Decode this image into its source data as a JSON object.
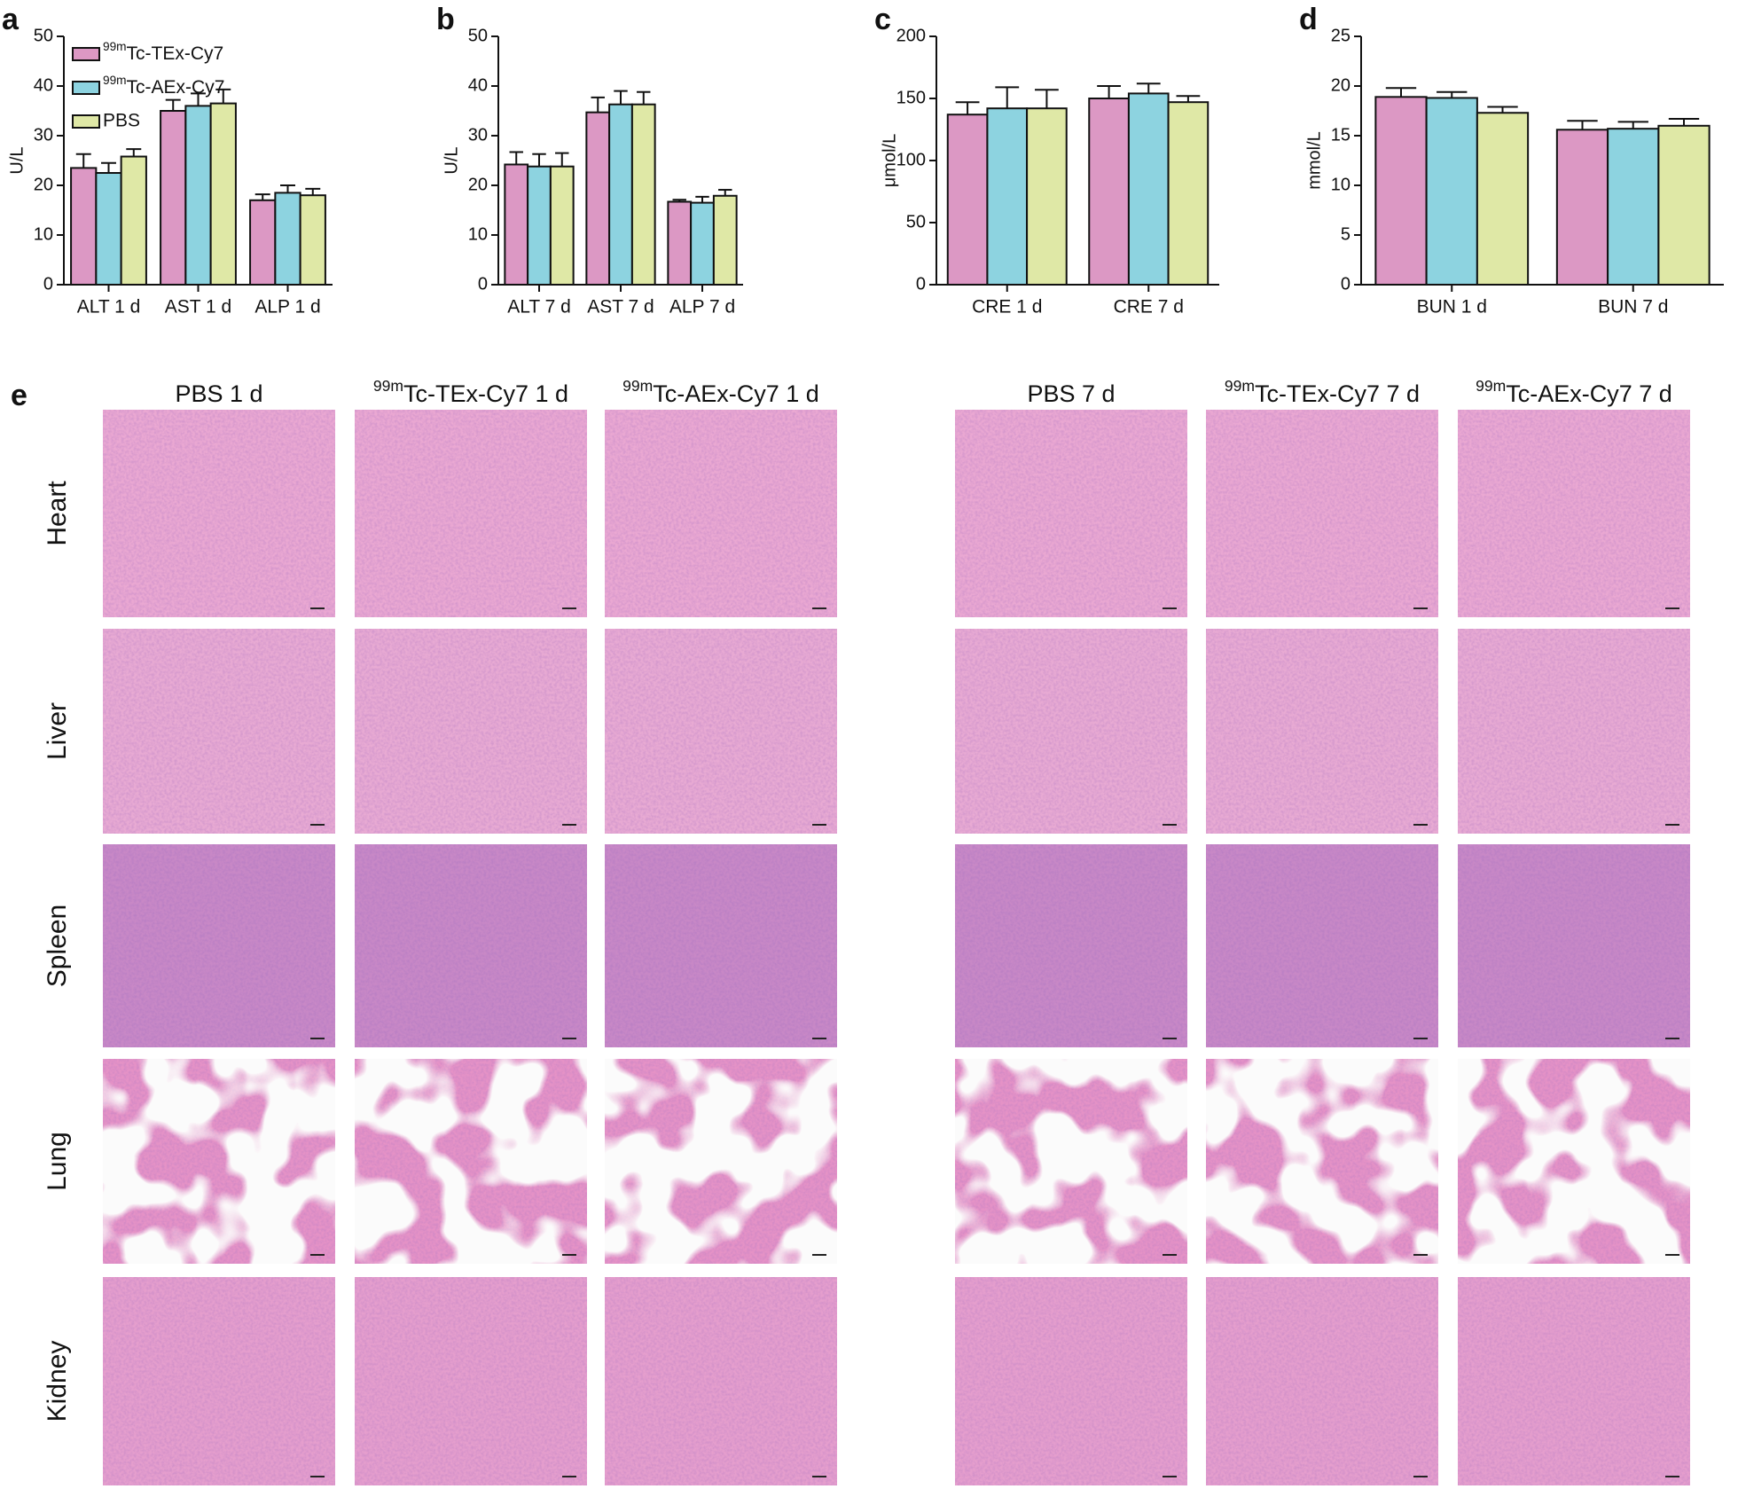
{
  "chart_data": [
    {
      "type": "bar",
      "panel_label": "a",
      "ylabel": "U/L",
      "categories": [
        "ALT 1 d",
        "AST 1 d",
        "ALP 1 d"
      ],
      "ylim": [
        0,
        50
      ],
      "yticks": [
        0,
        10,
        20,
        30,
        40,
        50
      ],
      "legend": "upper left",
      "series": [
        {
          "name": "99mTc-TEx-Cy7",
          "color": "#dc98c4",
          "values": [
            23.5,
            35,
            17
          ],
          "errors": [
            2.8,
            2.2,
            1.2
          ]
        },
        {
          "name": "99mTc-AEx-Cy7",
          "color": "#8dd3e0",
          "values": [
            22.5,
            36,
            18.5
          ],
          "errors": [
            2,
            2.5,
            1.5
          ]
        },
        {
          "name": "PBS",
          "color": "#dfe8a6",
          "values": [
            25.8,
            36.5,
            18
          ],
          "errors": [
            1.5,
            2.8,
            1.3
          ]
        }
      ]
    },
    {
      "type": "bar",
      "panel_label": "b",
      "ylabel": "U/L",
      "categories": [
        "ALT 7 d",
        "AST 7 d",
        "ALP  7 d"
      ],
      "ylim": [
        0,
        50
      ],
      "yticks": [
        0,
        10,
        20,
        30,
        40,
        50
      ],
      "series": [
        {
          "color": "#dc98c4",
          "values": [
            24.2,
            34.7,
            16.7
          ],
          "errors": [
            2.5,
            3,
            0.4
          ]
        },
        {
          "color": "#8dd3e0",
          "values": [
            23.8,
            36.3,
            16.5
          ],
          "errors": [
            2.5,
            2.7,
            1.2
          ]
        },
        {
          "color": "#dfe8a6",
          "values": [
            23.8,
            36.3,
            17.9
          ],
          "errors": [
            2.7,
            2.5,
            1.2
          ]
        }
      ]
    },
    {
      "type": "bar",
      "panel_label": "c",
      "ylabel": "μmol/L",
      "categories": [
        "CRE 1 d",
        "CRE 7 d"
      ],
      "ylim": [
        0,
        200
      ],
      "yticks": [
        0,
        50,
        100,
        150,
        200
      ],
      "series": [
        {
          "color": "#dc98c4",
          "values": [
            137,
            150
          ],
          "errors": [
            10,
            10
          ]
        },
        {
          "color": "#8dd3e0",
          "values": [
            142,
            154
          ],
          "errors": [
            17,
            8
          ]
        },
        {
          "color": "#dfe8a6",
          "values": [
            142,
            147
          ],
          "errors": [
            15,
            5
          ]
        }
      ]
    },
    {
      "type": "bar",
      "panel_label": "d",
      "ylabel": "mmol/L",
      "categories": [
        "BUN 1 d",
        "BUN 7 d"
      ],
      "ylim": [
        0,
        25
      ],
      "yticks": [
        0,
        5,
        10,
        15,
        20,
        25
      ],
      "series": [
        {
          "color": "#dc98c4",
          "values": [
            18.9,
            15.6
          ],
          "errors": [
            0.9,
            0.9
          ]
        },
        {
          "color": "#8dd3e0",
          "values": [
            18.8,
            15.7
          ],
          "errors": [
            0.6,
            0.7
          ]
        },
        {
          "color": "#dfe8a6",
          "values": [
            17.3,
            16
          ],
          "errors": [
            0.6,
            0.7
          ]
        }
      ]
    }
  ],
  "panel_e": {
    "label": "e",
    "columns": [
      "PBS 1 d",
      "99mTc-TEx-Cy7 1 d",
      "99mTc-AEx-Cy7 1 d",
      "PBS 7 d",
      "99mTc-TEx-Cy7 7 d",
      "99mTc-AEx-Cy7 7 d"
    ],
    "rows": [
      "Heart",
      "Liver",
      "Spleen",
      "Lung",
      "Kidney"
    ]
  }
}
